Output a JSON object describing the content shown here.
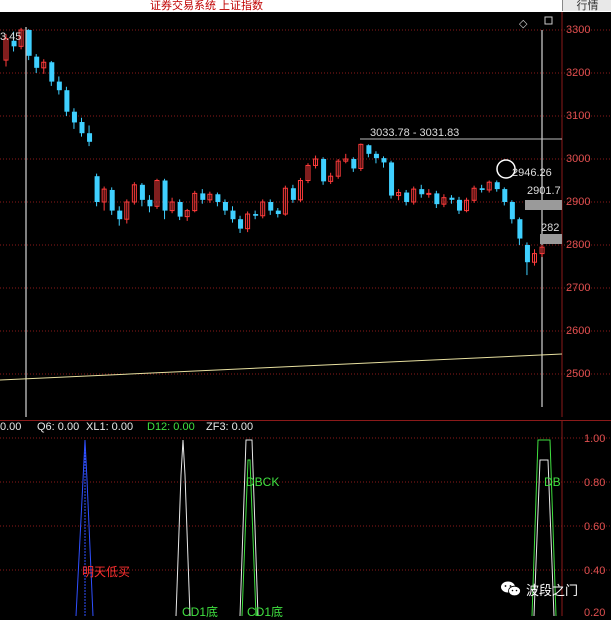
{
  "header": {
    "title": "证券交易系统  上证指数",
    "button_label": "行情"
  },
  "main_chart": {
    "price_axis": [
      "3300",
      "3200",
      "3100",
      "3000",
      "2900",
      "2800",
      "2700",
      "2600",
      "2500"
    ],
    "annotations": {
      "topleft": "3.45",
      "high_range": "3033.78 - 3031.83",
      "circle_value": "2946.26",
      "value_a": "2901.7",
      "value_b": "282"
    },
    "colors": {
      "up": "#ff3b3b",
      "down": "#3fd0ff",
      "grid": "#8b1a1a",
      "trend": "#e8e0a0"
    }
  },
  "indicator": {
    "legend": [
      {
        "name": "first",
        "text": "0.00",
        "color": "#e8e8e8"
      },
      {
        "name": "q6",
        "text": "Q6: 0.00",
        "color": "#e8e8e8"
      },
      {
        "name": "xl1",
        "text": "XL1: 0.00",
        "color": "#e8e8e8"
      },
      {
        "name": "d12",
        "text": "D12: 0.00",
        "color": "#40e040"
      },
      {
        "name": "zf3",
        "text": "ZF3: 0.00",
        "color": "#e8e8e8"
      }
    ],
    "axis": [
      "1.00",
      "0.80",
      "0.60",
      "0.40",
      "0.20"
    ],
    "signals": {
      "buy_tomorrow": "明天低买",
      "dbck": "DBCK",
      "db": "DB",
      "cd1": "CD1底",
      "cd2": "CD1底"
    }
  },
  "watermark": "波段之门"
}
